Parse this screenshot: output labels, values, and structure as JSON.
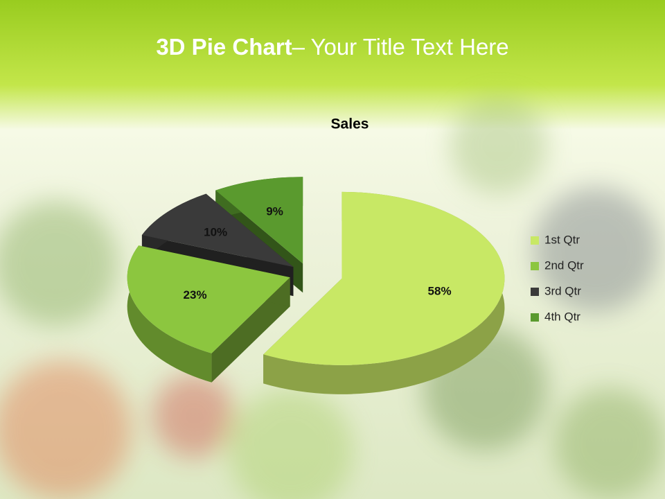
{
  "slide": {
    "title_bold": "3D Pie Chart",
    "title_rest": "– Your Title Text Here"
  },
  "chart_data": {
    "type": "pie",
    "title": "Sales",
    "categories": [
      "1st Qtr",
      "2nd Qtr",
      "3rd Qtr",
      "4th Qtr"
    ],
    "values": [
      58,
      23,
      10,
      9
    ],
    "value_labels": [
      "58%",
      "23%",
      "10%",
      "9%"
    ],
    "colors": [
      "#c8e865",
      "#8cc63f",
      "#3a3a3a",
      "#5a9a2e"
    ],
    "legend": "right"
  }
}
